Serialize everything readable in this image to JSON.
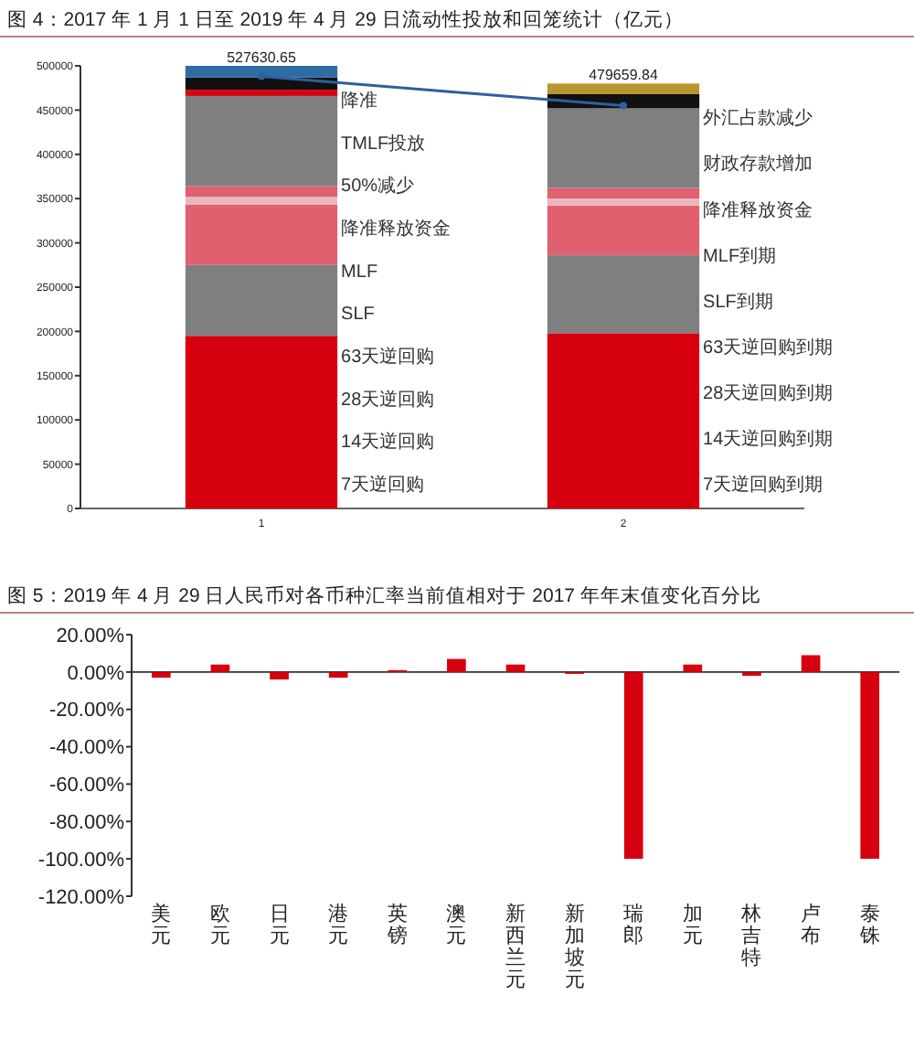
{
  "chart_data": [
    {
      "type": "bar",
      "title": "图 4：2017 年 1 月 1 日至 2019 年 4 月 29 日流动性投放和回笼统计（亿元）",
      "categories": [
        "1",
        "2"
      ],
      "stacked": true,
      "ylim": [
        0,
        500000
      ],
      "yticks": [
        0,
        50000,
        100000,
        150000,
        200000,
        250000,
        300000,
        350000,
        400000,
        450000,
        500000
      ],
      "grid": false,
      "series": [
        {
          "color": "#d6000f",
          "values": [
            195000,
            198000
          ]
        },
        {
          "color": "#7f7f7f",
          "values": [
            80000,
            88000
          ]
        },
        {
          "color": "#e0606f",
          "values": [
            68000,
            56000
          ]
        },
        {
          "color": "#e8b8be",
          "values": [
            9000,
            8000
          ]
        },
        {
          "color": "#e0606f",
          "values": [
            12000,
            12000
          ]
        },
        {
          "color": "#7f7f7f",
          "values": [
            102000,
            90000
          ]
        },
        {
          "color": "#d6000f",
          "values": [
            7000,
            null
          ]
        },
        {
          "color": "#111111",
          "values": [
            14000,
            16000
          ]
        },
        {
          "colors": [
            "#2e6da4",
            "#b8962e"
          ],
          "values": [
            13000,
            12000
          ]
        },
        {
          "type": "line",
          "color": "#2e5f9e",
          "values": [
            488000,
            455000
          ],
          "marker": "circle"
        }
      ],
      "annotations": [
        {
          "text": "527630.65",
          "x": "1",
          "y": 500000
        },
        {
          "text": "479659.84",
          "x": "2",
          "y": 480000
        },
        "降准",
        "TMLF投放",
        "50%减少",
        "降准释放资金",
        "MLF",
        "SLF",
        "63天逆回购",
        "28天逆回购",
        "14天逆回购",
        "7天逆回购",
        "外汇占款减少",
        "财政存款增加",
        "降准释放资金",
        "MLF到期",
        "SLF到期",
        "63天逆回购到期",
        "28天逆回购到期",
        "14天逆回购到期",
        "7天逆回购到期"
      ]
    },
    {
      "type": "bar",
      "title": "图 5：2019 年 4 月 29 日人民币对各币种汇率当前值相对于 2017 年年末值变化百分比",
      "categories": [
        "美元",
        "欧元",
        "日元",
        "港元",
        "英镑",
        "澳元",
        "新西兰元",
        "新加坡元",
        "瑞郎",
        "加元",
        "林吉特",
        "卢布",
        "泰铢"
      ],
      "series": [
        {
          "color": "#d6000f",
          "values": [
            -3,
            4,
            -4,
            -3,
            1,
            7,
            4,
            -1,
            -100,
            4,
            -2,
            9,
            -100
          ]
        }
      ],
      "ylim": [
        -120,
        20
      ],
      "yticks": [
        {
          "value": 20,
          "label": "20.00%"
        },
        {
          "value": 0,
          "label": "0.00%"
        },
        {
          "value": -20,
          "label": "-20.00%"
        },
        {
          "value": -40,
          "label": "-40.00%"
        },
        {
          "value": -60,
          "label": "-60.00%"
        },
        {
          "value": -80,
          "label": "-80.00%"
        },
        {
          "value": -100,
          "label": "-100.00%"
        },
        {
          "value": -120,
          "label": "-120.00%"
        }
      ]
    }
  ]
}
